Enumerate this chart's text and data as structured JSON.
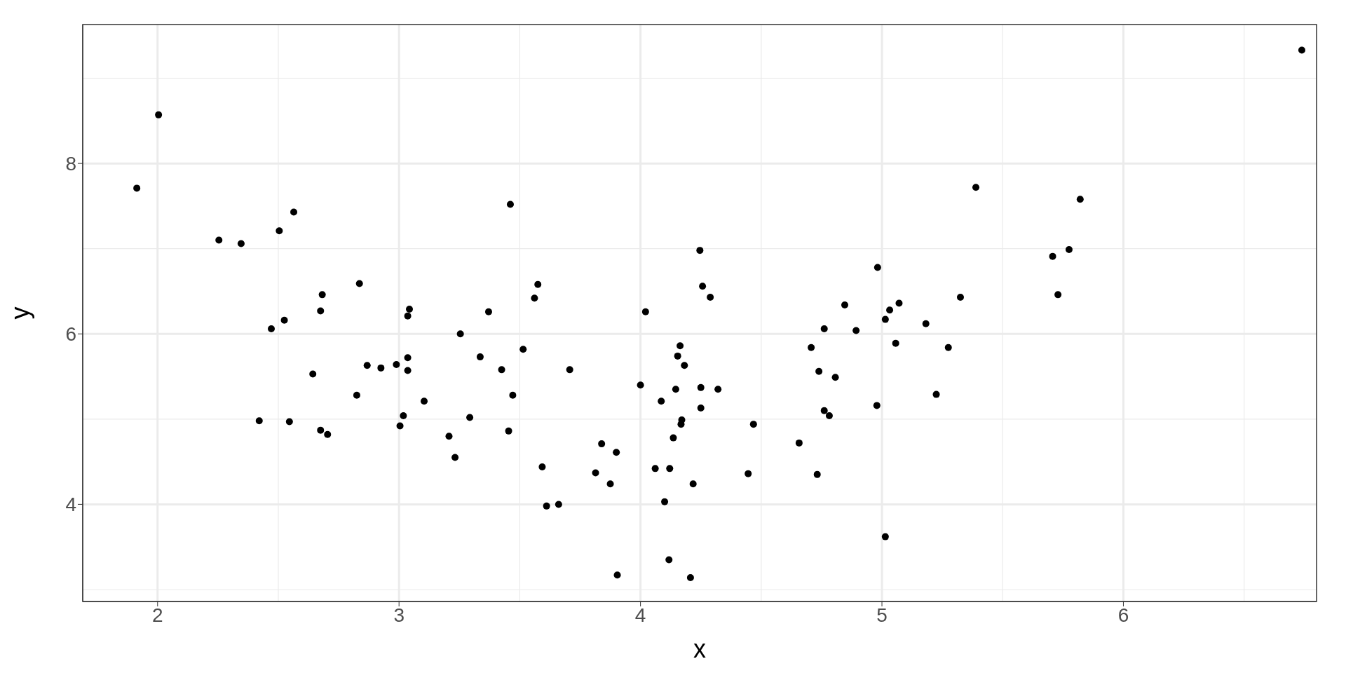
{
  "chart_data": {
    "type": "scatter",
    "xlabel": "x",
    "ylabel": "y",
    "x": [
      1.914,
      2.004,
      2.254,
      2.346,
      2.504,
      2.564,
      2.471,
      2.525,
      2.421,
      2.546,
      2.675,
      2.682,
      2.643,
      2.675,
      2.704,
      2.836,
      2.825,
      2.868,
      2.925,
      2.989,
      3.004,
      3.018,
      3.036,
      3.036,
      3.036,
      3.043,
      3.104,
      3.207,
      3.232,
      3.254,
      3.293,
      3.336,
      3.371,
      3.425,
      3.461,
      3.454,
      3.471,
      3.514,
      3.561,
      3.575,
      3.593,
      3.611,
      3.661,
      3.707,
      3.814,
      3.839,
      3.875,
      3.9,
      3.904,
      4.0,
      4.021,
      4.061,
      4.086,
      4.1,
      4.121,
      4.118,
      4.136,
      4.146,
      4.154,
      4.164,
      4.168,
      4.171,
      4.182,
      4.207,
      4.218,
      4.246,
      4.25,
      4.25,
      4.257,
      4.289,
      4.321,
      4.446,
      4.468,
      4.657,
      4.707,
      4.732,
      4.739,
      4.761,
      4.761,
      4.782,
      4.807,
      4.846,
      4.893,
      4.982,
      4.979,
      5.014,
      5.032,
      5.071,
      5.057,
      5.014,
      5.182,
      5.225,
      5.275,
      5.325,
      5.389,
      5.707,
      5.729,
      5.775,
      5.821,
      6.739
    ],
    "values": [
      7.71,
      8.57,
      7.1,
      7.06,
      7.21,
      7.43,
      6.06,
      6.16,
      4.98,
      4.97,
      6.27,
      6.46,
      5.53,
      4.87,
      4.82,
      6.59,
      5.28,
      5.63,
      5.6,
      5.64,
      4.92,
      5.04,
      5.72,
      5.57,
      6.21,
      6.29,
      5.21,
      4.8,
      4.55,
      6.0,
      5.02,
      5.73,
      6.26,
      5.58,
      7.52,
      4.86,
      5.28,
      5.82,
      6.42,
      6.58,
      4.44,
      3.98,
      4.0,
      5.58,
      4.37,
      4.71,
      4.24,
      4.61,
      3.17,
      5.4,
      6.26,
      4.42,
      5.21,
      4.03,
      4.42,
      3.35,
      4.78,
      5.35,
      5.74,
      5.86,
      4.94,
      4.99,
      5.63,
      3.14,
      4.24,
      6.98,
      5.37,
      5.13,
      6.56,
      6.43,
      5.35,
      4.36,
      4.94,
      4.72,
      5.84,
      4.35,
      5.56,
      6.06,
      5.1,
      5.04,
      5.49,
      6.34,
      6.04,
      6.78,
      5.16,
      6.17,
      6.28,
      6.36,
      5.89,
      3.62,
      6.12,
      5.29,
      5.84,
      6.43,
      7.72,
      6.91,
      6.46,
      6.99,
      7.58,
      9.33
    ],
    "color": "#000000",
    "marker": "circle",
    "xlim": [
      1.69,
      6.8
    ],
    "ylim": [
      2.86,
      9.63
    ],
    "xticks": [
      2,
      3,
      4,
      5,
      6
    ],
    "yticks": [
      4,
      6,
      8
    ],
    "grid": true
  }
}
